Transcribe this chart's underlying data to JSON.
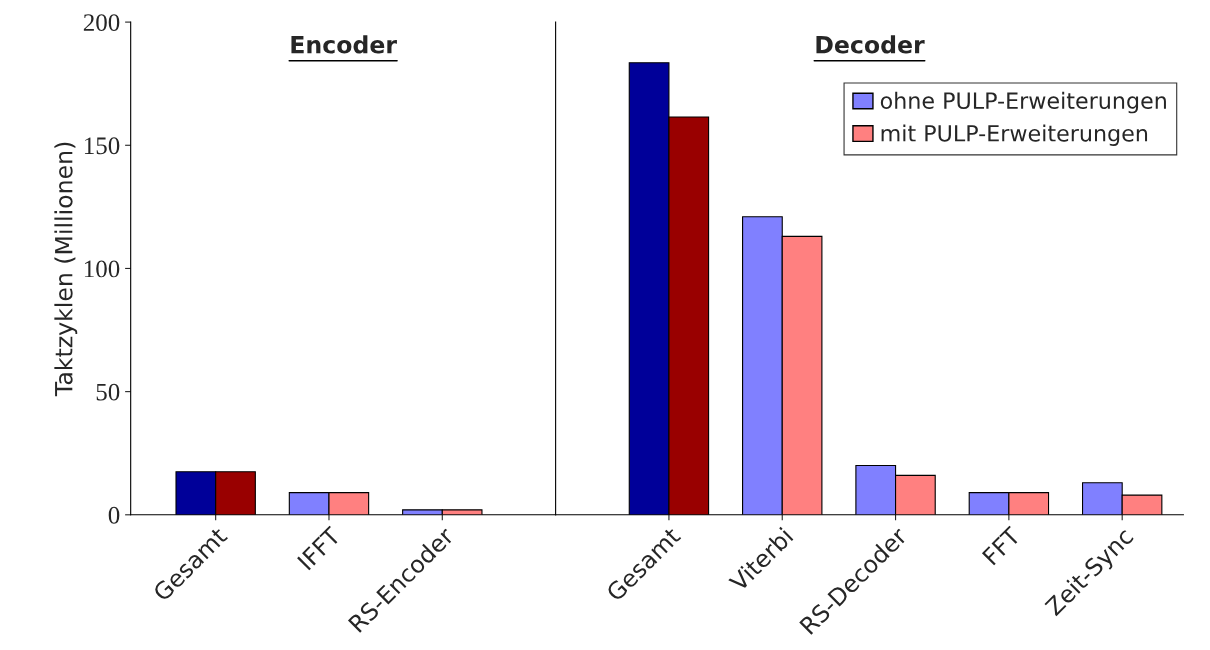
{
  "chart_data": [
    {
      "type": "bar",
      "title": "Encoder",
      "ylabel": "Taktzyklen (Millionen)",
      "categories": [
        "Gesamt",
        "IFFT",
        "RS-Encoder"
      ],
      "ylim": [
        0,
        200
      ],
      "yticks": [
        0,
        50,
        100,
        150,
        200
      ],
      "series": [
        {
          "colors": [
            "#000099",
            "#8080ff",
            "#8080ff"
          ],
          "values": [
            17.5,
            9,
            2
          ]
        },
        {
          "colors": [
            "#990000",
            "#ff8080",
            "#ff8080"
          ],
          "values": [
            17.5,
            9,
            2
          ]
        }
      ]
    },
    {
      "type": "bar",
      "title": "Decoder",
      "categories": [
        "Gesamt",
        "Viterbi",
        "RS-Decoder",
        "FFT",
        "Zeit-Sync"
      ],
      "ylim": [
        0,
        200
      ],
      "tick_labels": "x",
      "series": [
        {
          "name": "ohne PULP-Erweiterungen",
          "color": "#8080ff",
          "colors": [
            "#000099",
            "#8080ff",
            "#8080ff",
            "#8080ff",
            "#8080ff"
          ],
          "values": [
            183.5,
            121,
            20,
            9,
            13
          ]
        },
        {
          "name": "mit PULP-Erweiterungen",
          "color": "#ff8080",
          "colors": [
            "#990000",
            "#ff8080",
            "#ff8080",
            "#ff8080",
            "#ff8080"
          ],
          "values": [
            161.5,
            113,
            16,
            9,
            8
          ]
        }
      ],
      "legend": "top right"
    }
  ]
}
